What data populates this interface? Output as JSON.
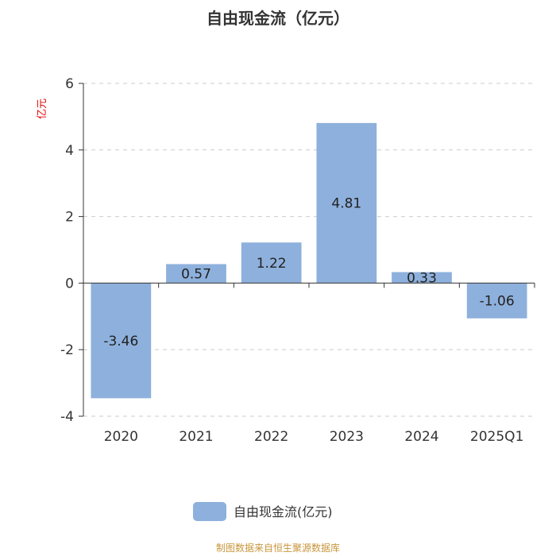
{
  "chart_data": {
    "type": "bar",
    "title": "自由现金流（亿元）",
    "ylabel": "亿元",
    "categories": [
      "2020",
      "2021",
      "2022",
      "2023",
      "2024",
      "2025Q1"
    ],
    "series": [
      {
        "name": "自由现金流(亿元)",
        "values": [
          -3.46,
          0.57,
          1.22,
          4.81,
          0.33,
          -1.06
        ]
      }
    ],
    "data_labels": [
      "-3.46",
      "0.57",
      "1.22",
      "4.81",
      "0.33",
      "-1.06"
    ],
    "ylim": [
      -4,
      6
    ],
    "yticks": [
      -4,
      -2,
      0,
      2,
      4,
      6
    ],
    "ytick_labels": [
      "-4",
      "-2",
      "0",
      "2",
      "4",
      "6"
    ],
    "grid": true,
    "legend_position": "bottom-center"
  },
  "colors": {
    "bar": "#8eb0dc",
    "grid": "#cccccc",
    "axis": "#333333",
    "ylabel": "#e00000",
    "source": "#c8963c"
  },
  "footer": {
    "source": "制图数据来自恒生聚源数据库"
  }
}
